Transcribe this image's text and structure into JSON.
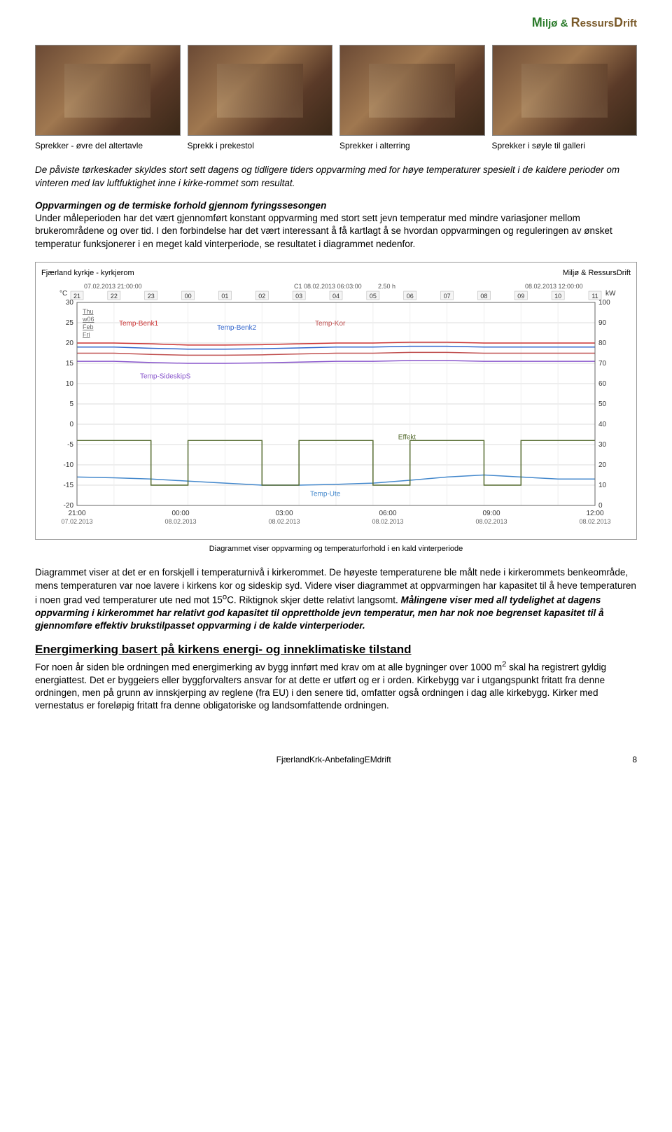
{
  "brand": {
    "m_big": "M",
    "m_rest": "iljø & ",
    "r_big": "R",
    "r_rest": "essurs",
    "d_big": "D",
    "d_rest": "rift"
  },
  "captions": {
    "c1": "Sprekker - øvre del altertavle",
    "c2": "Sprekk i prekestol",
    "c3": "Sprekker i alterring",
    "c4": "Sprekker i søyle til galleri"
  },
  "para1": {
    "lead_italic": "De påviste tørkeskader skyldes stort sett dagens og tidligere tiders oppvarming med for høye temperaturer spesielt i de kaldere perioder om vinteren med lav luftfuktighet inne i kirke-rommet som resultat."
  },
  "para2": {
    "heading": "Oppvarmingen og de termiske forhold gjennom fyringssesongen",
    "body": "Under måleperioden har det vært gjennomført konstant oppvarming med stort sett jevn temperatur med mindre variasjoner mellom brukerområdene og over tid.  I den forbindelse har det vært interessant å få kartlagt å se hvordan oppvarmingen og reguleringen av ønsket temperatur funksjonerer i en meget kald vinterperiode, se resultatet i diagrammet nedenfor."
  },
  "chart": {
    "title_left": "Fjærland kyrkje - kyrkjerom",
    "title_right": "Miljø & RessursDrift",
    "timestamp_left": "07.02.2013 21:00:00",
    "center_label": "C1 08.02.2013 06:03:00",
    "duration": "2.50 h",
    "timestamp_right": "08.02.2013 12:00:00",
    "left_unit": "°C",
    "right_unit": "kW",
    "hour_labels": [
      "21",
      "22",
      "23",
      "00",
      "01",
      "02",
      "03",
      "04",
      "05",
      "06",
      "07",
      "08",
      "09",
      "10",
      "11"
    ],
    "day_labels": [
      "Thu",
      "w06",
      "Feb",
      "Fri"
    ],
    "series": {
      "temp_benk1": {
        "label": "Temp-Benk1",
        "color": "#cc3333"
      },
      "temp_benk2": {
        "label": "Temp-Benk2",
        "color": "#3366cc"
      },
      "temp_kor": {
        "label": "Temp-Kor",
        "color": "#c05050"
      },
      "temp_sideskips": {
        "label": "Temp-SideskipS",
        "color": "#8855cc"
      },
      "effekt": {
        "label": "Effekt",
        "color": "#556b2f"
      },
      "temp_ute": {
        "label": "Temp-Ute",
        "color": "#4488cc"
      }
    },
    "y_left": {
      "min": -20,
      "max": 30,
      "ticks": [
        -20,
        -15,
        -10,
        -5,
        0,
        5,
        10,
        15,
        20,
        25,
        30
      ]
    },
    "y_right": {
      "min": 0,
      "max": 100,
      "ticks": [
        0,
        10,
        20,
        30,
        40,
        50,
        60,
        70,
        80,
        90,
        100
      ]
    },
    "x_ticks": [
      {
        "label": "21:00",
        "sub": "07.02.2013"
      },
      {
        "label": "00:00",
        "sub": "08.02.2013"
      },
      {
        "label": "03:00",
        "sub": "08.02.2013"
      },
      {
        "label": "06:00",
        "sub": "08.02.2013"
      },
      {
        "label": "09:00",
        "sub": "08.02.2013"
      },
      {
        "label": "12:00",
        "sub": "08.02.2013"
      }
    ],
    "benk1_y": [
      20,
      20,
      19.8,
      19.5,
      19.5,
      19.6,
      19.8,
      20,
      20,
      20.2,
      20.2,
      20,
      20,
      20,
      20
    ],
    "benk2_y": [
      19,
      19,
      18.7,
      18.5,
      18.5,
      18.6,
      18.8,
      19,
      19,
      19.2,
      19.2,
      19,
      19,
      19,
      19
    ],
    "kor_y": [
      17.5,
      17.5,
      17.2,
      17,
      17,
      17.1,
      17.3,
      17.5,
      17.5,
      17.7,
      17.7,
      17.5,
      17.5,
      17.5,
      17.5
    ],
    "sideskip_y": [
      15.5,
      15.5,
      15.2,
      15,
      15,
      15.1,
      15.3,
      15.5,
      15.5,
      15.7,
      15.7,
      15.5,
      15.5,
      15.5,
      15.5
    ],
    "ute_y": [
      -13,
      -13.2,
      -13.5,
      -14,
      -14.5,
      -15,
      -15,
      -14.8,
      -14.5,
      -13.8,
      -13,
      -12.5,
      -13,
      -13.5,
      -13.5
    ],
    "effekt_kw": [
      32,
      32,
      10,
      32,
      32,
      10,
      32,
      32,
      10,
      32,
      32,
      10,
      32,
      32,
      32
    ],
    "caption": "Diagrammet viser oppvarming og temperaturforhold i en kald vinterperiode"
  },
  "para3": {
    "text": "Diagrammet viser at det er en forskjell i temperaturnivå i kirkerommet.  De høyeste temperaturene ble målt nede i kirkerommets benkeområde, mens temperaturen var noe lavere i kirkens kor og sideskip syd.  Videre viser diagrammet at oppvarmingen har kapasitet til å heve temperaturen i noen grad ved temperaturer ute ned mot 15",
    "deg": "o",
    "text2": "C.  Riktignok skjer dette relativt langsomt.  ",
    "bold_italic": "Målingene viser med all tydelighet at dagens oppvarming i kirkerommet har relativt god kapasitet til opprettholde jevn temperatur, men har nok noe begrenset kapasitet til å gjennomføre effektiv brukstilpasset oppvarming i de kalde vinterperioder."
  },
  "section2": {
    "heading": "Energimerking basert på kirkens energi- og inneklimatiske tilstand",
    "body1": "For noen år siden ble ordningen med energimerking av bygg innført med krav om at alle bygninger over 1000 m",
    "sup": "2",
    "body2": " skal ha registrert gyldig energiattest.  Det er byggeiers eller byggforvalters ansvar for at dette er utført og er i orden.  Kirkebygg var i utgangspunkt fritatt fra denne ordningen, men på grunn av innskjerping av reglene (fra EU) i den senere tid, omfatter også ordningen i dag alle kirkebygg.  Kirker med vernestatus er foreløpig fritatt fra denne obligatoriske og landsomfattende ordningen."
  },
  "footer": {
    "doc": "FjærlandKrk-AnbefalingEMdrift",
    "page": "8"
  }
}
